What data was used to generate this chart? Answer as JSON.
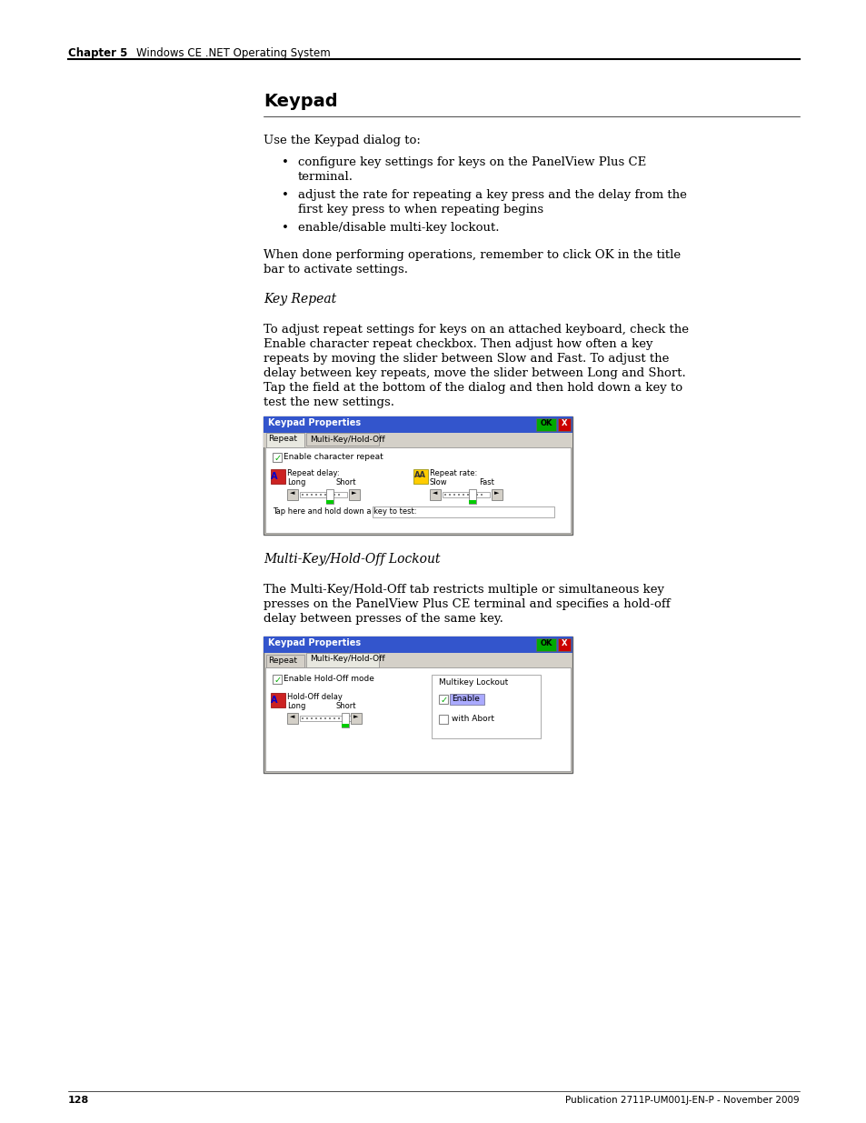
{
  "background_color": "#ffffff",
  "header_chapter": "Chapter 5",
  "header_subtitle": "Windows CE .NET Operating System",
  "footer_page": "128",
  "footer_pub": "Publication 2711P-UM001J-EN-P - November 2009",
  "title": "Keypad",
  "section1_heading": "Key Repeat",
  "section2_heading": "Multi-Key/Hold-Off Lockout",
  "intro_text": "Use the Keypad dialog to:",
  "bullet1a": "configure key settings for keys on the PanelView Plus CE",
  "bullet1b": "terminal.",
  "bullet2a": "adjust the rate for repeating a key press and the delay from the",
  "bullet2b": "first key press to when repeating begins",
  "bullet3": "enable/disable multi-key lockout.",
  "para1a": "When done performing operations, remember to click OK in the title",
  "para1b": "bar to activate settings.",
  "key_repeat_para1": "To adjust repeat settings for keys on an attached keyboard, check the",
  "key_repeat_para2": "Enable character repeat checkbox. Then adjust how often a key",
  "key_repeat_para3": "repeats by moving the slider between Slow and Fast. To adjust the",
  "key_repeat_para4": "delay between key repeats, move the slider between Long and Short.",
  "key_repeat_para5": "Tap the field at the bottom of the dialog and then hold down a key to",
  "key_repeat_para6": "test the new settings.",
  "multi_key_para1": "The Multi-Key/Hold-Off tab restricts multiple or simultaneous key",
  "multi_key_para2": "presses on the PanelView Plus CE terminal and specifies a hold-off",
  "multi_key_para3": "delay between presses of the same key.",
  "dlg_title": "Keypad Properties",
  "tab1": "Repeat",
  "tab2": "Multi-Key/Hold-Off",
  "cb_char_repeat": "Enable character repeat",
  "repeat_delay": "Repeat delay:",
  "label_long": "Long",
  "label_short": "Short",
  "repeat_rate": "Repeat rate:",
  "label_slow": "Slow",
  "label_fast": "Fast",
  "tap_text": "Tap here and hold down a key to test:",
  "cb_holdoff": "Enable Hold-Off mode",
  "holdoff_delay": "Hold-Off delay",
  "multikey_lockout": "Multikey Lockout",
  "cb_enable": "Enable",
  "cb_abort": "with Abort",
  "title_bar_color": "#3355cc",
  "dialog_bg": "#d4d0c8",
  "ok_bg": "#d4d0c8",
  "x_bg": "#cc0000",
  "content_bg": "#ffffff",
  "check_color": "#00aa00",
  "slider_track": "#808080",
  "slider_bg": "#d4d0c8"
}
